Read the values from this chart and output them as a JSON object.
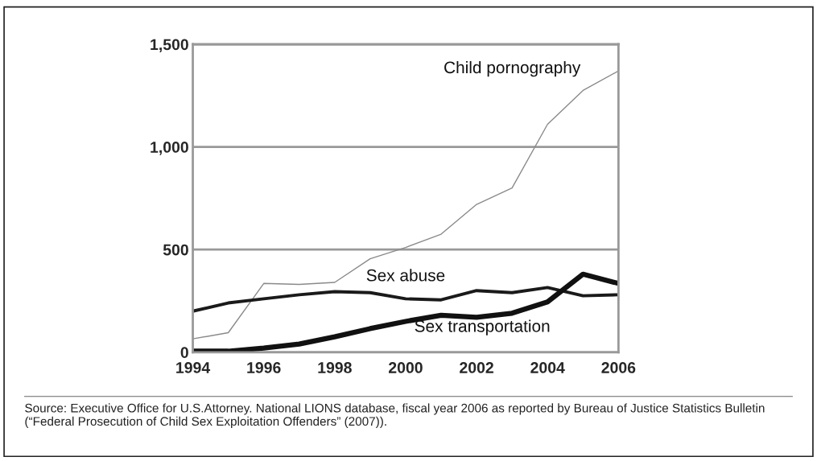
{
  "chart_data": {
    "type": "line",
    "x": [
      1994,
      1995,
      1996,
      1997,
      1998,
      1999,
      2000,
      2001,
      2002,
      2003,
      2004,
      2005,
      2006
    ],
    "series": [
      {
        "name": "Child pornography",
        "color": "#8a8a8a",
        "values": [
          65,
          95,
          335,
          330,
          340,
          455,
          510,
          575,
          720,
          800,
          1110,
          1275,
          1370
        ]
      },
      {
        "name": "Sex abuse",
        "color": "#1a1a1a",
        "values": [
          200,
          240,
          260,
          280,
          295,
          290,
          260,
          255,
          300,
          290,
          315,
          275,
          280
        ]
      },
      {
        "name": "Sex transportation",
        "color": "#111111",
        "values": [
          5,
          5,
          20,
          40,
          75,
          115,
          150,
          180,
          170,
          190,
          245,
          380,
          335
        ]
      }
    ],
    "xlim": [
      1994,
      2006
    ],
    "xticks": [
      1994,
      1996,
      1998,
      2000,
      2002,
      2004,
      2006
    ],
    "ylim": [
      0,
      1500
    ],
    "yticks": [
      0,
      500,
      {
        "value": 1000,
        "label": "1,000"
      },
      {
        "value": 1500,
        "label": "1,500"
      }
    ],
    "grid": "y",
    "marker": "none",
    "line_style": "solid",
    "legend": false,
    "annotations": [
      "Source: Executive Office for U.S.Attorney. National LIONS database, fiscal year 2006 as reported by Bureau of Justice Statistics Bulletin (“Federal Prosecution of Child Sex Exploitation Offenders” (2007))."
    ]
  }
}
